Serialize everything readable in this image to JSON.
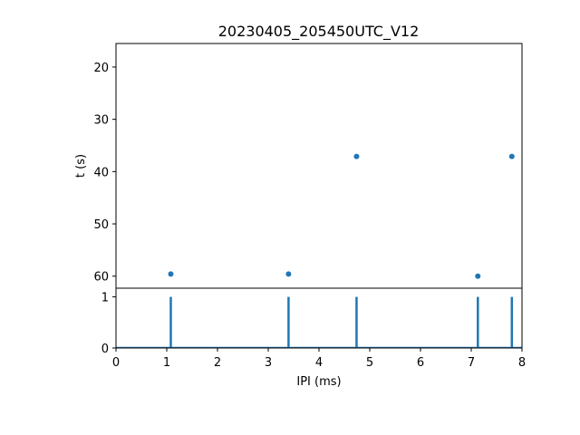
{
  "chart_data": [
    {
      "type": "scatter",
      "title": "20230405_205450UTC_V12",
      "ylabel": "t (s)",
      "xlim": [
        0,
        8
      ],
      "ylim": [
        62.3,
        15.5
      ],
      "y_inverted": true,
      "yticks": [
        20,
        30,
        40,
        50,
        60
      ],
      "color": "#1f77b4",
      "points": [
        {
          "x": 1.08,
          "y": 59.6
        },
        {
          "x": 3.4,
          "y": 59.6
        },
        {
          "x": 4.74,
          "y": 37.1
        },
        {
          "x": 7.13,
          "y": 60.0
        },
        {
          "x": 7.8,
          "y": 37.1
        }
      ]
    },
    {
      "type": "line",
      "xlabel": "IPI (ms)",
      "xlim": [
        0,
        8
      ],
      "ylim": [
        0,
        1.17
      ],
      "xticks": [
        0,
        1,
        2,
        3,
        4,
        5,
        6,
        7,
        8
      ],
      "yticks": [
        0,
        1
      ],
      "color": "#1f77b4",
      "spikes": [
        1.08,
        3.4,
        4.74,
        7.13,
        7.8
      ],
      "spike_height": 1
    }
  ]
}
